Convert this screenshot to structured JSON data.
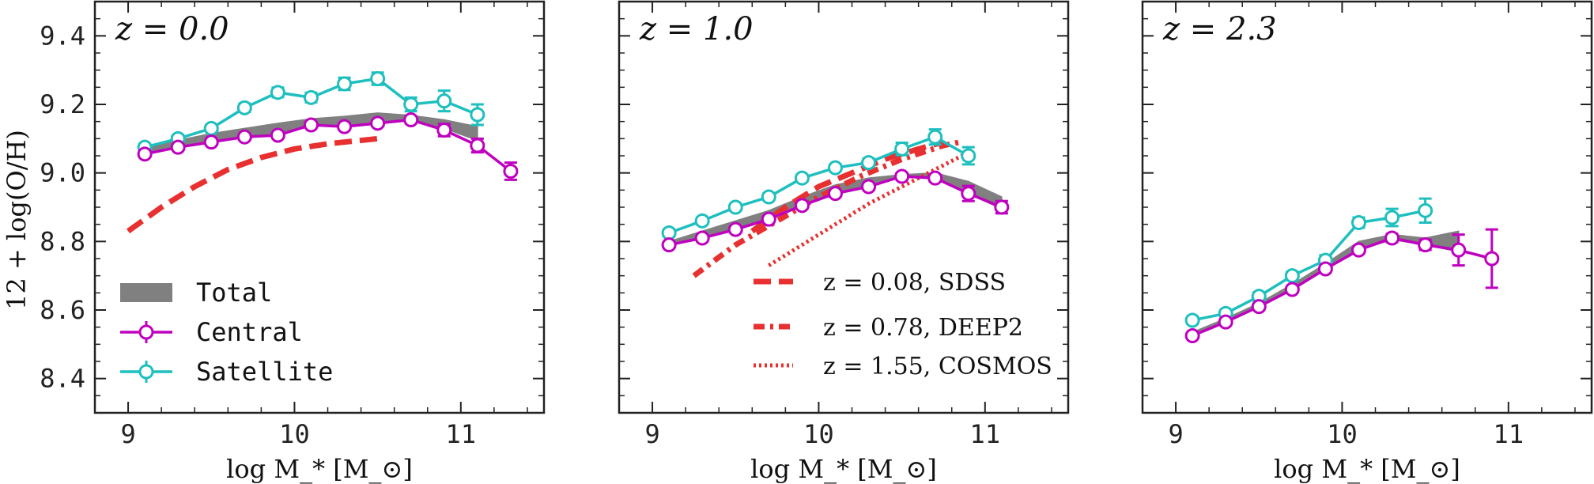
{
  "chart_data": {
    "type": "line",
    "shared": {
      "ylabel": "12 + log(O/H)",
      "xlabel": "log M_* [M_⊙]",
      "xlim": [
        8.8,
        11.5
      ],
      "ylim": [
        8.3,
        9.5
      ],
      "xticks": [
        9,
        10,
        11
      ],
      "xtick_labels": [
        "9",
        "10",
        "11"
      ],
      "yticks": [
        8.4,
        8.6,
        8.8,
        9.0,
        9.2,
        9.4
      ],
      "ytick_labels": [
        "8.4",
        "8.6",
        "8.8",
        "9.0",
        "9.2",
        "9.4"
      ],
      "colors": {
        "total": "#808080",
        "central": "#bf00bf",
        "satellite": "#1fbfbf",
        "obs": "#e83030"
      }
    },
    "panels": [
      {
        "title": "z = 0.0",
        "total": {
          "x": [
            9.1,
            9.3,
            9.5,
            9.7,
            9.9,
            10.1,
            10.3,
            10.5,
            10.7,
            10.9,
            11.1
          ],
          "lo": [
            9.056,
            9.075,
            9.09,
            9.105,
            9.115,
            9.138,
            9.137,
            9.145,
            9.155,
            9.13,
            9.095
          ],
          "hi": [
            9.075,
            9.095,
            9.115,
            9.13,
            9.145,
            9.158,
            9.165,
            9.175,
            9.168,
            9.155,
            9.135
          ]
        },
        "series": [
          {
            "name": "Central",
            "x": [
              9.1,
              9.3,
              9.5,
              9.7,
              9.9,
              10.1,
              10.3,
              10.5,
              10.7,
              10.9,
              11.1,
              11.3
            ],
            "values": [
              9.055,
              9.075,
              9.09,
              9.105,
              9.11,
              9.14,
              9.135,
              9.145,
              9.155,
              9.125,
              9.08,
              9.005
            ],
            "err": [
              0.008,
              0.008,
              0.008,
              0.008,
              0.008,
              0.008,
              0.008,
              0.008,
              0.01,
              0.018,
              0.02,
              0.025
            ]
          },
          {
            "name": "Satellite",
            "x": [
              9.1,
              9.3,
              9.5,
              9.7,
              9.9,
              10.1,
              10.3,
              10.5,
              10.7,
              10.9,
              11.1
            ],
            "values": [
              9.075,
              9.1,
              9.13,
              9.19,
              9.235,
              9.22,
              9.26,
              9.275,
              9.2,
              9.21,
              9.17
            ],
            "err": [
              0.01,
              0.01,
              0.01,
              0.012,
              0.014,
              0.014,
              0.018,
              0.018,
              0.02,
              0.03,
              0.03
            ]
          }
        ],
        "observations": [
          {
            "name": "z = 0.08, SDSS",
            "style": "dashed",
            "x": [
              9.0,
              9.2,
              9.4,
              9.6,
              9.8,
              10.0,
              10.2,
              10.5
            ],
            "values": [
              8.83,
              8.9,
              8.96,
              9.01,
              9.045,
              9.07,
              9.085,
              9.1
            ]
          }
        ],
        "legend": [
          "Total",
          "Central",
          "Satellite"
        ]
      },
      {
        "title": "z = 1.0",
        "total": {
          "x": [
            9.1,
            9.3,
            9.5,
            9.7,
            9.9,
            10.1,
            10.3,
            10.5,
            10.7,
            10.9,
            11.1
          ],
          "lo": [
            8.79,
            8.815,
            8.835,
            8.865,
            8.905,
            8.945,
            8.965,
            8.99,
            8.985,
            8.94,
            8.895
          ],
          "hi": [
            8.8,
            8.83,
            8.86,
            8.89,
            8.93,
            8.965,
            8.985,
            8.995,
            9.0,
            8.975,
            8.93
          ]
        },
        "series": [
          {
            "name": "Central",
            "x": [
              9.1,
              9.3,
              9.5,
              9.7,
              9.9,
              10.1,
              10.3,
              10.5,
              10.7,
              10.9,
              11.1
            ],
            "values": [
              8.79,
              8.81,
              8.835,
              8.865,
              8.905,
              8.94,
              8.96,
              8.99,
              8.985,
              8.94,
              8.9
            ],
            "err": [
              0.008,
              0.008,
              0.008,
              0.008,
              0.008,
              0.008,
              0.008,
              0.01,
              0.01,
              0.022,
              0.018
            ]
          },
          {
            "name": "Satellite",
            "x": [
              9.1,
              9.3,
              9.5,
              9.7,
              9.9,
              10.1,
              10.3,
              10.5,
              10.7,
              10.9
            ],
            "values": [
              8.825,
              8.86,
              8.9,
              8.93,
              8.985,
              9.015,
              9.03,
              9.07,
              9.105,
              9.05
            ],
            "err": [
              0.01,
              0.01,
              0.01,
              0.01,
              0.01,
              0.01,
              0.012,
              0.018,
              0.022,
              0.025
            ]
          }
        ],
        "observations": [
          {
            "name": "z = 0.08, SDSS",
            "style": "dashed",
            "x": [
              9.6,
              9.8,
              10.0,
              10.2,
              10.4,
              10.6,
              10.75
            ],
            "values": [
              8.83,
              8.9,
              8.96,
              9.0,
              9.04,
              9.07,
              9.09
            ]
          },
          {
            "name": "z = 0.78, DEEP2",
            "style": "dashdot",
            "x": [
              9.25,
              9.5,
              9.75,
              10.0,
              10.25,
              10.5,
              10.75,
              10.85
            ],
            "values": [
              8.7,
              8.79,
              8.86,
              8.93,
              8.99,
              9.04,
              9.08,
              9.09
            ]
          },
          {
            "name": "z = 1.55, COSMOS",
            "style": "dotted",
            "x": [
              9.7,
              9.9,
              10.1,
              10.3,
              10.5,
              10.7,
              10.9
            ],
            "values": [
              8.73,
              8.79,
              8.85,
              8.91,
              8.96,
              9.01,
              9.06
            ]
          }
        ],
        "legend": [
          "z = 0.08, SDSS",
          "z = 0.78, DEEP2",
          "z = 1.55, COSMOS"
        ]
      },
      {
        "title": "z = 2.3",
        "total": {
          "x": [
            9.1,
            9.3,
            9.5,
            9.7,
            9.9,
            10.1,
            10.3,
            10.5,
            10.7
          ],
          "lo": [
            8.525,
            8.565,
            8.61,
            8.66,
            8.72,
            8.775,
            8.805,
            8.79,
            8.77
          ],
          "hi": [
            8.535,
            8.575,
            8.62,
            8.675,
            8.735,
            8.8,
            8.82,
            8.81,
            8.83
          ]
        },
        "series": [
          {
            "name": "Central",
            "x": [
              9.1,
              9.3,
              9.5,
              9.7,
              9.9,
              10.1,
              10.3,
              10.5,
              10.7,
              10.9
            ],
            "values": [
              8.525,
              8.565,
              8.61,
              8.66,
              8.72,
              8.775,
              8.81,
              8.79,
              8.775,
              8.75
            ],
            "err": [
              0.008,
              0.008,
              0.008,
              0.008,
              0.008,
              0.01,
              0.012,
              0.015,
              0.045,
              0.085
            ]
          },
          {
            "name": "Satellite",
            "x": [
              9.1,
              9.3,
              9.5,
              9.7,
              9.9,
              10.1,
              10.3,
              10.5
            ],
            "values": [
              8.57,
              8.59,
              8.64,
              8.7,
              8.745,
              8.855,
              8.87,
              8.89
            ],
            "err": [
              0.01,
              0.01,
              0.012,
              0.012,
              0.015,
              0.015,
              0.025,
              0.035
            ]
          }
        ],
        "observations": [],
        "legend": []
      }
    ]
  }
}
